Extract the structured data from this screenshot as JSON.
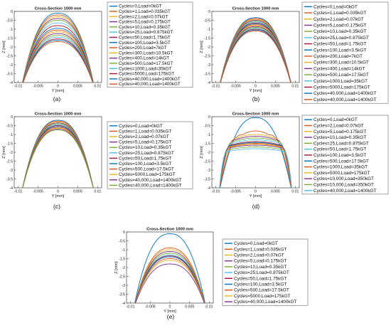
{
  "colors": [
    "#0072BD",
    "#D95319",
    "#EDB120",
    "#7E2F8E",
    "#77AC30",
    "#4DBEEE",
    "#A2142F",
    "#0072BD",
    "#D95319",
    "#EDB120",
    "#7E2F8E",
    "#77AC30",
    "#4DBEEE",
    "#A2142F"
  ],
  "chart_data": [
    {
      "type": "line",
      "panel_label": "(a)",
      "title": "Cross-Section 1000 mm",
      "xlabel": "Y [mm]",
      "ylabel": "Z [mm]",
      "xlim": [
        -0.011,
        0.011
      ],
      "ylim": [
        -4,
        0
      ],
      "xticks": [
        {
          "v": -0.01,
          "t": "-0.01"
        },
        {
          "v": -0.005,
          "t": "-0.005"
        },
        {
          "v": 0,
          "t": "0"
        },
        {
          "v": 0.005,
          "t": "0.005"
        },
        {
          "v": 0.01,
          "t": "0.01"
        }
      ],
      "yticks": [
        {
          "v": -4,
          "t": "-4"
        },
        {
          "v": -3.5,
          "t": "-3.5"
        },
        {
          "v": -3,
          "t": "-3"
        },
        {
          "v": -2.5,
          "t": "-2.5"
        },
        {
          "v": -2,
          "t": "-2"
        },
        {
          "v": -1.5,
          "t": "-1.5"
        },
        {
          "v": -1,
          "t": "-1"
        },
        {
          "v": -0.5,
          "t": "-0.5"
        },
        {
          "v": 0,
          "t": "0"
        }
      ],
      "legend": [
        "Cycles=0,Load=0kGT",
        "Cycles=1,Load=0.035kGT",
        "Cycles=2,Load=0.07kGT",
        "Cycles=5,Load=0.175kGT",
        "Cycles=10,Load=0.35kGT",
        "Cycles=25,Load=0.875kGT",
        "Cycles=50,Load=1.75kGT",
        "Cycles=100,Load=3.5kGT",
        "Cycles=200,Load=7kGT",
        "Cycles=300,Load=10.5kGT",
        "Cycles=400,Load=14kGT",
        "Cycles=500,Load=17.5kGT",
        "Cycles=1000,Load=35kGT",
        "Cycles=5000,Load=175kGT",
        "Cycles=40,000,Load=1400kGT",
        "Cycles=40,000,Load=1400kGT"
      ],
      "series": [
        {
          "name": "Cycles=0,Load=0kGT",
          "peak": -0.1
        },
        {
          "name": "Cycles=1,Load=0.035kGT",
          "peak": -0.2
        },
        {
          "name": "Cycles=2,Load=0.07kGT",
          "peak": -0.3
        },
        {
          "name": "Cycles=5,Load=0.175kGT",
          "peak": -0.4
        },
        {
          "name": "Cycles=10,Load=0.35kGT",
          "peak": -0.5
        },
        {
          "name": "Cycles=25,Load=0.875kGT",
          "peak": -0.65
        },
        {
          "name": "Cycles=50,Load=1.75kGT",
          "peak": -0.8
        },
        {
          "name": "Cycles=100,Load=3.5kGT",
          "peak": -0.95
        },
        {
          "name": "Cycles=200,Load=7kGT",
          "peak": -1.05
        },
        {
          "name": "Cycles=300,Load=10.5kGT",
          "peak": -1.15
        },
        {
          "name": "Cycles=400,Load=14kGT",
          "peak": -1.25
        },
        {
          "name": "Cycles=500,Load=17.5kGT",
          "peak": -1.35
        },
        {
          "name": "Cycles=1000,Load=35kGT",
          "peak": -1.45
        },
        {
          "name": "Cycles=5000,Load=175kGT",
          "peak": -1.55
        },
        {
          "name": "Cycles=40,000,Load=1400kGT",
          "peak": -1.62
        },
        {
          "name": "Cycles=40,000,Load=1400kGT",
          "peak": -1.7
        }
      ]
    },
    {
      "type": "line",
      "panel_label": "(b)",
      "title": "Cross-Section 1000 mm",
      "xlabel": "Y [mm]",
      "ylabel": "Z [mm]",
      "xlim": [
        -0.011,
        0.011
      ],
      "ylim": [
        -4,
        0
      ],
      "xticks": [
        {
          "v": -0.01,
          "t": "-0.01"
        },
        {
          "v": -0.005,
          "t": "-0.005"
        },
        {
          "v": 0,
          "t": "0"
        },
        {
          "v": 0.005,
          "t": "0.005"
        },
        {
          "v": 0.01,
          "t": "0.01"
        }
      ],
      "yticks": [
        {
          "v": -4,
          "t": "-4"
        },
        {
          "v": -3.5,
          "t": "-3.5"
        },
        {
          "v": -3,
          "t": "-3"
        },
        {
          "v": -2.5,
          "t": "-2.5"
        },
        {
          "v": -2,
          "t": "-2"
        },
        {
          "v": -1.5,
          "t": "-1.5"
        },
        {
          "v": -1,
          "t": "-1"
        },
        {
          "v": -0.5,
          "t": "-0.5"
        },
        {
          "v": 0,
          "t": "0"
        }
      ],
      "legend": [
        "Cycles=0,Load=0kGT",
        "Cycles=1,Load=0.035kGT",
        "Cycles=2,Load=0.07kGT",
        "Cycles=5,Load=0.175kGT",
        "Cycles=10,Load=0.35kGT",
        "Cycles=25,Load=0.875kGT",
        "Cycles=50,Load=1.75kGT",
        "Cycles=100,Load=3.5kGT",
        "Cycles=200,Load=7kGT",
        "Cycles=300,Load=10.5kGT",
        "Cycles=400,Load=14kGT",
        "Cycles=500,Load=17.5kGT",
        "Cycles=1000,Load=35kGT",
        "Cycles=5000,Load=175kGT",
        "Cycles=40,000,Load=1400kGT",
        "Cycles=40,000,Load=1400kGT"
      ],
      "series": [
        {
          "name": "Cycles=0,Load=0kGT",
          "peak": -0.35
        },
        {
          "name": "Cycles=1,Load=0.035kGT",
          "peak": -0.4
        },
        {
          "name": "Cycles=2,Load=0.07kGT",
          "peak": -0.45
        },
        {
          "name": "Cycles=5,Load=0.175kGT",
          "peak": -0.5
        },
        {
          "name": "Cycles=10,Load=0.35kGT",
          "peak": -0.55
        },
        {
          "name": "Cycles=25,Load=0.875kGT",
          "peak": -0.6
        },
        {
          "name": "Cycles=50,Load=1.75kGT",
          "peak": -0.65
        },
        {
          "name": "Cycles=100,Load=3.5kGT",
          "peak": -0.7
        },
        {
          "name": "Cycles=200,Load=7kGT",
          "peak": -0.75
        },
        {
          "name": "Cycles=300,Load=10.5kGT",
          "peak": -0.8
        },
        {
          "name": "Cycles=400,Load=14kGT",
          "peak": -0.85
        },
        {
          "name": "Cycles=500,Load=17.5kGT",
          "peak": -0.9
        },
        {
          "name": "Cycles=1000,Load=35kGT",
          "peak": -0.95
        },
        {
          "name": "Cycles=5000,Load=175kGT",
          "peak": -1.0
        },
        {
          "name": "Cycles=40,000,Load=1400kGT",
          "peak": -1.05
        },
        {
          "name": "Cycles=40,000,Load=1400kGT",
          "peak": -1.1
        }
      ]
    },
    {
      "type": "line",
      "panel_label": "(c)",
      "title": "Cross-Section 1000 mm",
      "xlabel": "Y [mm]",
      "ylabel": "Z [mm]",
      "xlim": [
        -0.011,
        0.011
      ],
      "ylim": [
        -4,
        0
      ],
      "xticks": [
        {
          "v": -0.01,
          "t": "-0.01"
        },
        {
          "v": -0.005,
          "t": "-0.005"
        },
        {
          "v": 0,
          "t": "0"
        },
        {
          "v": 0.005,
          "t": "0.005"
        },
        {
          "v": 0.01,
          "t": "0.01"
        }
      ],
      "yticks": [
        {
          "v": -4,
          "t": "-4"
        },
        {
          "v": -3.5,
          "t": "-3.5"
        },
        {
          "v": -3,
          "t": "-3"
        },
        {
          "v": -2.5,
          "t": "-2.5"
        },
        {
          "v": -2,
          "t": "-2"
        },
        {
          "v": -1.5,
          "t": "-1.5"
        },
        {
          "v": -1,
          "t": "-1"
        },
        {
          "v": -0.5,
          "t": "-0.5"
        },
        {
          "v": 0,
          "t": "0"
        }
      ],
      "legend": [
        "Cycles=0,Load=0kGT",
        "Cycles=1,Load=0.035kGT",
        "Cycles=2,Load=0.07kGT",
        "Cycles=5,Load=0.175kGT",
        "Cycles=10,Load=0.35kGT",
        "Cycles=25,Load=0.875kGT",
        "Cycles=50,Load=1.75kGT",
        "Cycles=100,Load=3.5kGT",
        "Cycles=500,Load=17.5kGT",
        "Cycles=5000,Load=175kGT",
        "Cycles=40,000,Load=1400kGT",
        "Cycles=40,000,Load=1400kGT"
      ],
      "series": [
        {
          "name": "Cycles=0,Load=0kGT",
          "peak": -0.2
        },
        {
          "name": "Cycles=1,Load=0.035kGT",
          "peak": -0.25
        },
        {
          "name": "Cycles=2,Load=0.07kGT",
          "peak": -0.3
        },
        {
          "name": "Cycles=5,Load=0.175kGT",
          "peak": -0.35
        },
        {
          "name": "Cycles=10,Load=0.35kGT",
          "peak": -0.4
        },
        {
          "name": "Cycles=25,Load=0.875kGT",
          "peak": -0.45
        },
        {
          "name": "Cycles=50,Load=1.75kGT",
          "peak": -0.5
        },
        {
          "name": "Cycles=100,Load=3.5kGT",
          "peak": -0.55
        },
        {
          "name": "Cycles=500,Load=17.5kGT",
          "peak": -0.6
        },
        {
          "name": "Cycles=5000,Load=175kGT",
          "peak": -0.65
        },
        {
          "name": "Cycles=40,000,Load=1400kGT",
          "peak": -0.7
        },
        {
          "name": "Cycles=40,000,Load=1400kGT",
          "peak": -0.75
        }
      ]
    },
    {
      "type": "line",
      "panel_label": "(d)",
      "title": "Cross-Section 1000 mm",
      "xlabel": "Y [mm]",
      "ylabel": "Z [mm]",
      "xlim": [
        -0.011,
        0.011
      ],
      "ylim": [
        -4,
        0
      ],
      "xticks": [
        {
          "v": -0.01,
          "t": "-0.01"
        },
        {
          "v": -0.005,
          "t": "-0.005"
        },
        {
          "v": 0,
          "t": "0"
        },
        {
          "v": 0.005,
          "t": "0.005"
        },
        {
          "v": 0.01,
          "t": "0.01"
        }
      ],
      "yticks": [
        {
          "v": -4,
          "t": "-4"
        },
        {
          "v": -3.5,
          "t": "-3.5"
        },
        {
          "v": -3,
          "t": "-3"
        },
        {
          "v": -2.5,
          "t": "-2.5"
        },
        {
          "v": -2,
          "t": "-2"
        },
        {
          "v": -1.5,
          "t": "-1.5"
        },
        {
          "v": -1,
          "t": "-1"
        },
        {
          "v": -0.5,
          "t": "-0.5"
        },
        {
          "v": 0,
          "t": "0"
        }
      ],
      "legend": [
        "Cycles=0,Load=0kGT",
        "Cycles=2,Load=0.07kGT",
        "Cycles=5,Load=0.175kGT",
        "Cycles=10,Load=0.35kGT",
        "Cycles=25,Load=0.875kGT",
        "Cycles=50,Load=1.75kGT",
        "Cycles=100,Load=3.5kGT",
        "Cycles=500,Load=17.5kGT",
        "Cycles=1000,Load=35kGT",
        "Cycles=5000,Load=175kGT",
        "Cycles=10,000,Load=350kGT",
        "Cycles=10,000,Load=350kGT",
        "Cycles=40,000,Load=1400kGT"
      ],
      "series": [
        {
          "name": "Cycles=0,Load=0kGT",
          "peak": -0.05
        },
        {
          "name": "Cycles=2,Load=0.07kGT",
          "peak": -0.8,
          "flat": 0.35
        },
        {
          "name": "Cycles=5,Load=0.175kGT",
          "peak": -1.0,
          "flat": 0.5
        },
        {
          "name": "Cycles=10,Load=0.35kGT",
          "peak": -1.1,
          "flat": 0.55
        },
        {
          "name": "Cycles=25,Load=0.875kGT",
          "peak": -1.2,
          "flat": 0.6
        },
        {
          "name": "Cycles=50,Load=1.75kGT",
          "peak": -1.3,
          "flat": 0.62
        },
        {
          "name": "Cycles=100,Load=3.5kGT",
          "peak": -1.4,
          "flat": 0.64
        },
        {
          "name": "Cycles=500,Load=17.5kGT",
          "peak": -1.45,
          "flat": 0.66
        },
        {
          "name": "Cycles=1000,Load=35kGT",
          "peak": -1.5,
          "flat": 0.68
        },
        {
          "name": "Cycles=5000,Load=175kGT",
          "peak": -1.55,
          "flat": 0.7
        },
        {
          "name": "Cycles=10,000,Load=350kGT",
          "peak": -1.6,
          "flat": 0.72
        },
        {
          "name": "Cycles=10,000,Load=350kGT",
          "peak": -1.7,
          "flat": 0.74
        },
        {
          "name": "Cycles=40,000,Load=1400kGT",
          "peak": -1.8,
          "flat": 0.76
        }
      ]
    },
    {
      "type": "line",
      "panel_label": "(e)",
      "title": "Cross-Section 1000 mm",
      "xlabel": "Y [mm]",
      "ylabel": "Z [mm]",
      "xlim": [
        -0.011,
        0.011
      ],
      "ylim": [
        -4,
        0
      ],
      "xticks": [
        {
          "v": -0.01,
          "t": "-0.01"
        },
        {
          "v": -0.005,
          "t": "-0.005"
        },
        {
          "v": 0,
          "t": "0"
        },
        {
          "v": 0.005,
          "t": "0.005"
        },
        {
          "v": 0.01,
          "t": "0.01"
        }
      ],
      "yticks": [
        {
          "v": -4,
          "t": "-4"
        },
        {
          "v": -3.5,
          "t": "-3.5"
        },
        {
          "v": -3,
          "t": "-3"
        },
        {
          "v": -2.5,
          "t": "-2.5"
        },
        {
          "v": -2,
          "t": "-2"
        },
        {
          "v": -1.5,
          "t": "-1.5"
        },
        {
          "v": -1,
          "t": "-1"
        },
        {
          "v": -0.5,
          "t": "-0.5"
        },
        {
          "v": 0,
          "t": "0"
        }
      ],
      "legend": [
        "Cycles=0,Load=0kGT",
        "Cycles=1,Load=0.035kGT",
        "Cycles=2,Load=0.07kGT",
        "Cycles=5,Load=0.175kGT",
        "Cycles=10,Load=0.35kGT",
        "Cycles=25,Load=0.875kGT",
        "Cycles=50,Load=1.75kGT",
        "Cycles=100,Load=3.5kGT",
        "Cycles=500,Load=17.5kGT",
        "Cycles=5000,Load=175kGT",
        "Cycles=40,000,Load=1400kGT"
      ],
      "series": [
        {
          "name": "Cycles=0,Load=0kGT",
          "peak": -0.1
        },
        {
          "name": "Cycles=1,Load=0.035kGT",
          "peak": -0.9
        },
        {
          "name": "Cycles=2,Load=0.07kGT",
          "peak": -1.0
        },
        {
          "name": "Cycles=5,Load=0.175kGT",
          "peak": -1.1
        },
        {
          "name": "Cycles=10,Load=0.35kGT",
          "peak": -1.2
        },
        {
          "name": "Cycles=25,Load=0.875kGT",
          "peak": -1.3
        },
        {
          "name": "Cycles=50,Load=1.75kGT",
          "peak": -1.35
        },
        {
          "name": "Cycles=100,Load=3.5kGT",
          "peak": -1.4
        },
        {
          "name": "Cycles=500,Load=17.5kGT",
          "peak": -1.5
        },
        {
          "name": "Cycles=5000,Load=175kGT",
          "peak": -1.6
        },
        {
          "name": "Cycles=40,000,Load=1400kGT",
          "peak": -1.8
        }
      ]
    }
  ]
}
